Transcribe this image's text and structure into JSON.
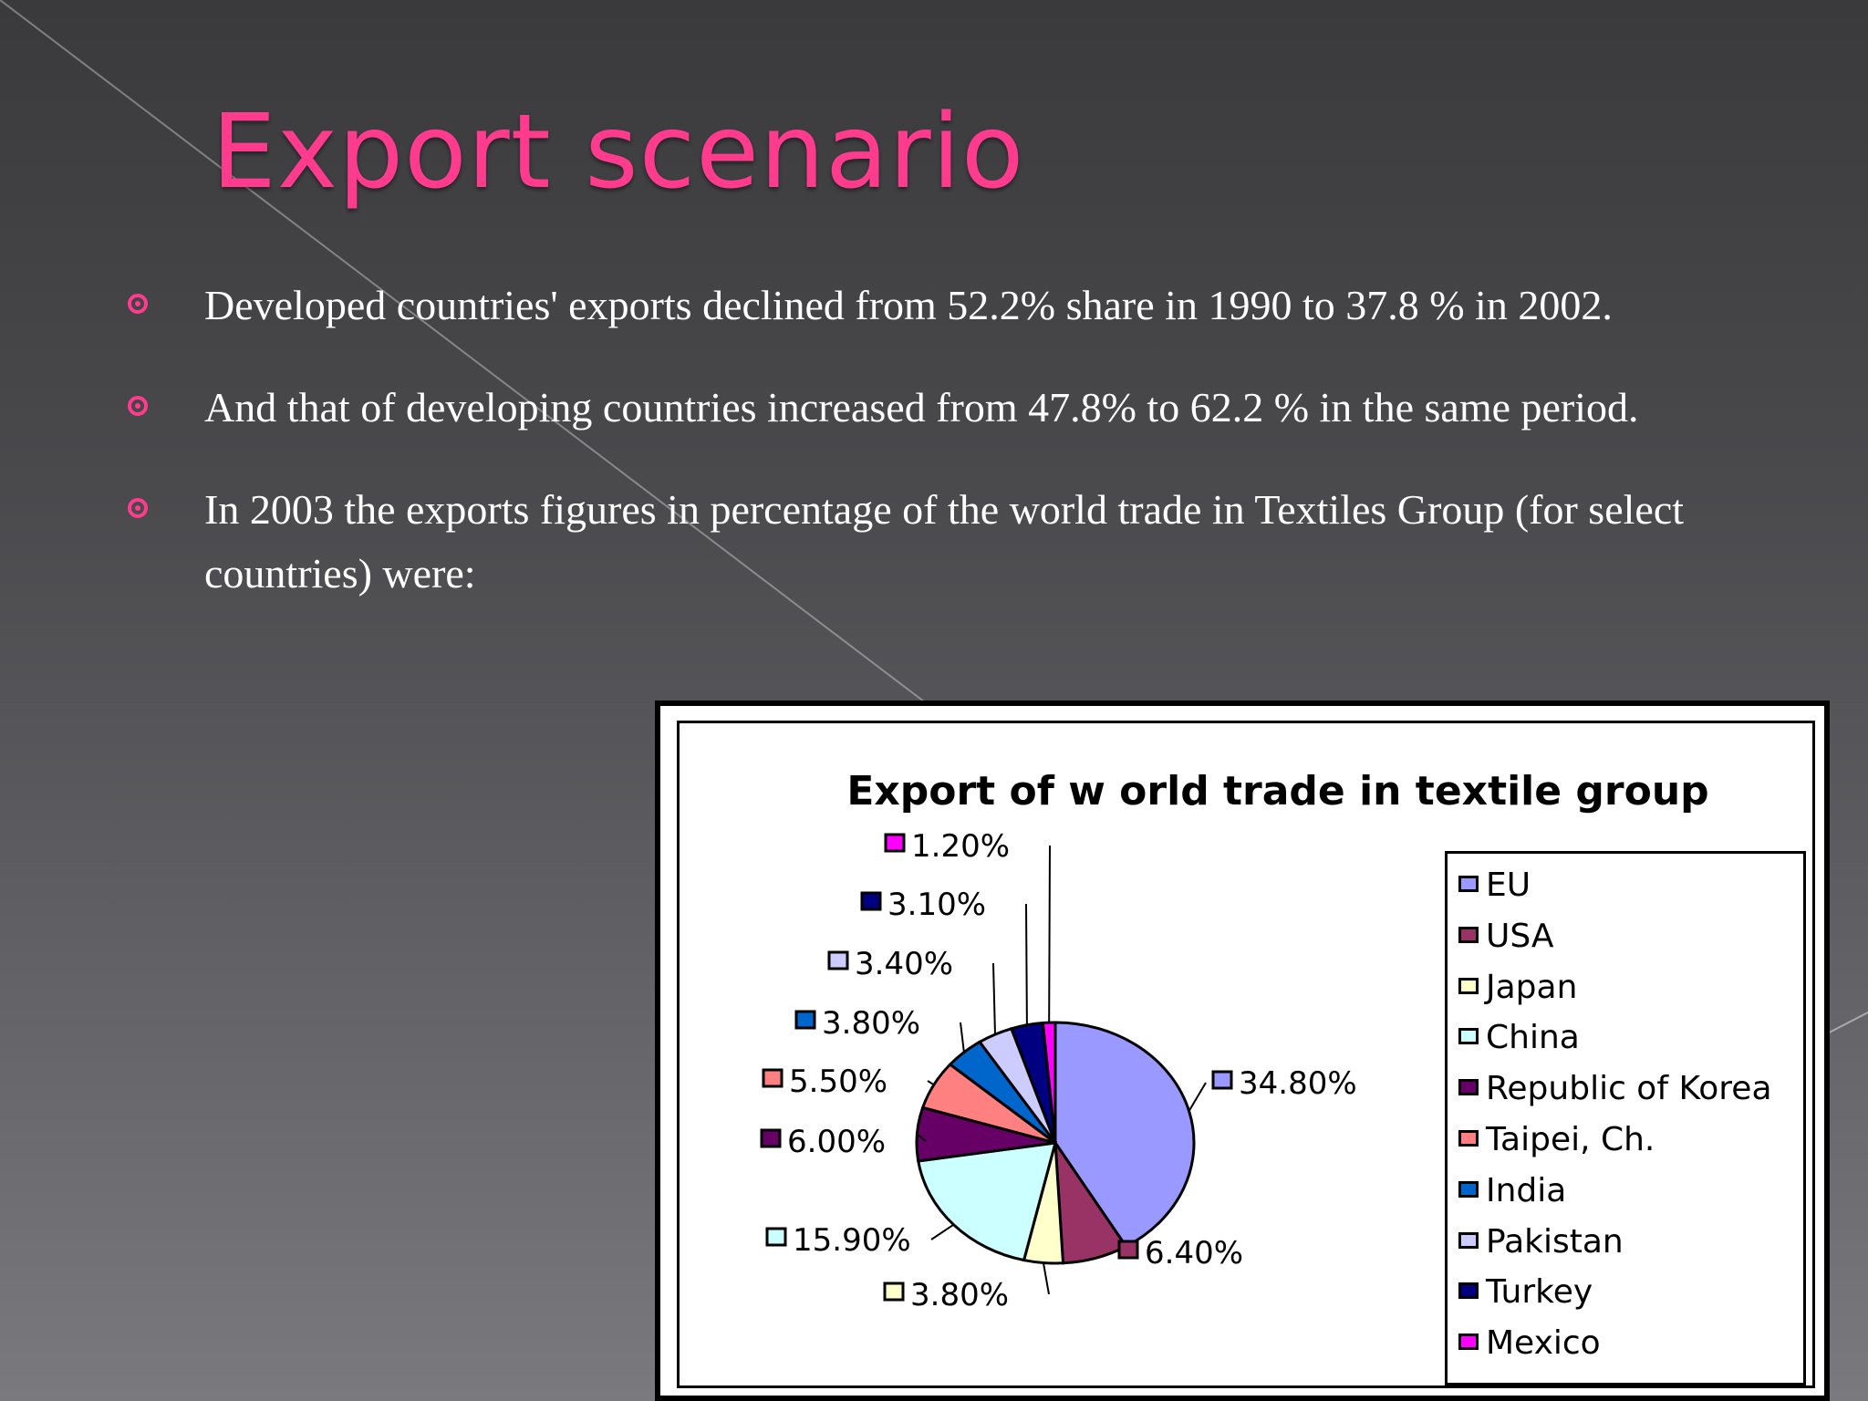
{
  "slide": {
    "title": "Export scenario",
    "bullets": [
      "Developed countries' exports declined from 52.2% share in 1990 to 37.8 % in 2002.",
      "And that of developing countries increased from 47.8% to 62.2 % in the same period.",
      "In 2003 the exports figures in percentage of the world trade in Textiles Group (for select countries) were:"
    ],
    "accent_color": "#ff3b8e",
    "bullet_icon": "circle-dot-icon"
  },
  "chart_data": {
    "type": "pie",
    "title": "Export of w orld trade in textile group",
    "legend_position": "right",
    "slices": [
      {
        "name": "EU",
        "value": 34.8,
        "label": "34.80%",
        "color": "#9999ff"
      },
      {
        "name": "USA",
        "value": 6.4,
        "label": "6.40%",
        "color": "#993366"
      },
      {
        "name": "Japan",
        "value": 3.8,
        "label": "3.80%",
        "color": "#ffffcc"
      },
      {
        "name": "China",
        "value": 15.9,
        "label": "15.90%",
        "color": "#ccffff"
      },
      {
        "name": "Republic of Korea",
        "value": 6.0,
        "label": "6.00%",
        "color": "#660066"
      },
      {
        "name": "Taipei, Ch.",
        "value": 5.5,
        "label": "5.50%",
        "color": "#ff8080"
      },
      {
        "name": "India",
        "value": 3.8,
        "label": "3.80%",
        "color": "#0066cc"
      },
      {
        "name": "Pakistan",
        "value": 3.4,
        "label": "3.40%",
        "color": "#ccccff"
      },
      {
        "name": "Turkey",
        "value": 3.1,
        "label": "3.10%",
        "color": "#000080"
      },
      {
        "name": "Mexico",
        "value": 1.2,
        "label": "1.20%",
        "color": "#ff00ff"
      }
    ]
  }
}
